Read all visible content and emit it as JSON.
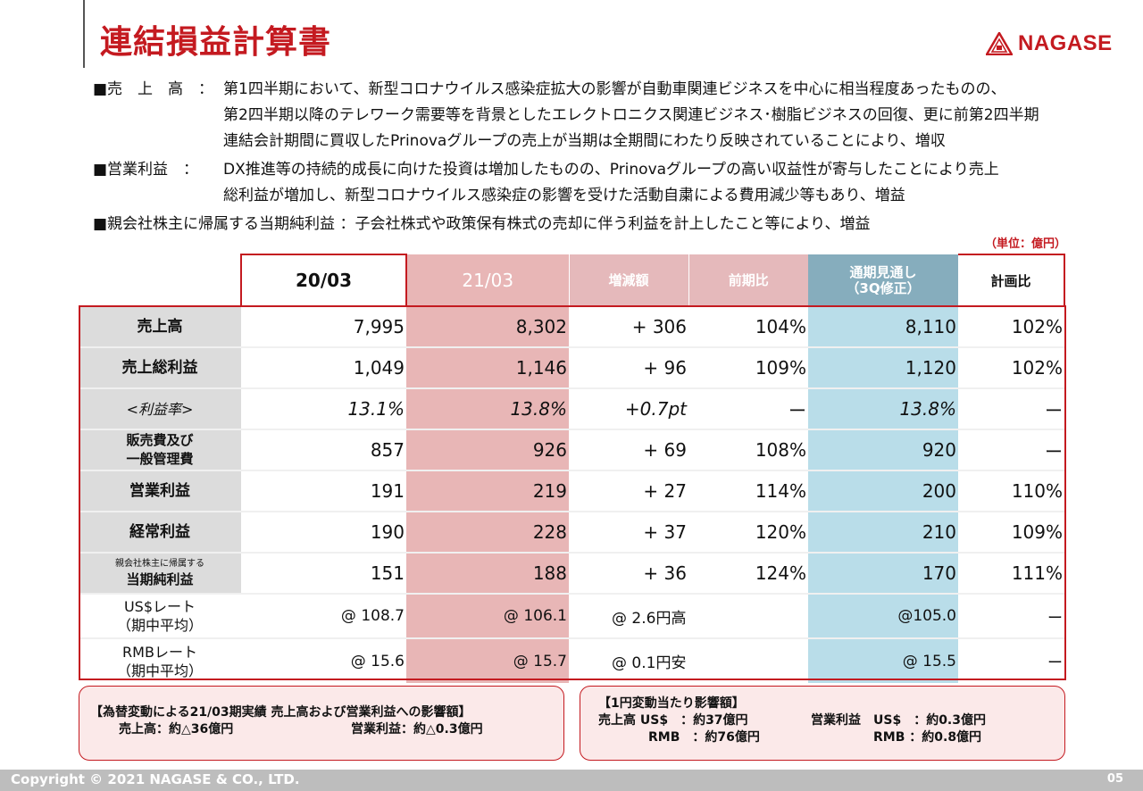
{
  "header": {
    "title": "連結損益計算書",
    "logo_text": "NAGASE"
  },
  "summary": {
    "sales": {
      "label": "■売　上　高　：",
      "lines": [
        "第1四半期において、新型コロナウイルス感染症拡大の影響が自動車関連ビジネスを中心に相当程度あったものの、",
        "第2四半期以降のテレワーク需要等を背景としたエレクトロニクス関連ビジネス･樹脂ビジネスの回復、更に前第2四半期",
        "連結会計期間に買収したPrinovaグループの売上が当期は全期間にわたり反映されていることにより、増収"
      ]
    },
    "op_income": {
      "label": "■営業利益　：",
      "lines": [
        "DX推進等の持続的成長に向けた投資は増加したものの、Prinovaグループの高い収益性が寄与したことにより売上",
        "総利益が増加し、新型コロナウイルス感染症の影響を受けた活動自粛による費用減少等もあり、増益"
      ]
    },
    "net_income": "■親会社株主に帰属する当期純利益 ：子会社株式や政策保有株式の売却に伴う利益を計上したこと等により、増益"
  },
  "unit": "（単位：億円）",
  "table": {
    "headers": {
      "y2003": "20/03",
      "y2103": "21/03",
      "diff": "増減額",
      "ratio": "前期比",
      "forecast_l1": "通期見通し",
      "forecast_l2": "（3Q修正）",
      "plan_ratio": "計画比"
    },
    "rows": [
      {
        "label": "売上高",
        "y2003": "7,995",
        "y2103": "8,302",
        "diff": "+ 306",
        "ratio": "104%",
        "forecast": "8,110",
        "plan": "102%"
      },
      {
        "label": "売上総利益",
        "y2003": "1,049",
        "y2103": "1,146",
        "diff": "+ 96",
        "ratio": "109%",
        "forecast": "1,120",
        "plan": "102%"
      },
      {
        "label": "<利益率>",
        "y2003": "13.1%",
        "y2103": "13.8%",
        "diff": "+0.7pt",
        "ratio": "ー",
        "forecast": "13.8%",
        "plan": "ー"
      },
      {
        "label_l1": "販売費及び",
        "label_l2": "一般管理費",
        "y2003": "857",
        "y2103": "926",
        "diff": "+ 69",
        "ratio": "108%",
        "forecast": "920",
        "plan": "ー"
      },
      {
        "label": "営業利益",
        "y2003": "191",
        "y2103": "219",
        "diff": "+ 27",
        "ratio": "114%",
        "forecast": "200",
        "plan": "110%"
      },
      {
        "label": "経常利益",
        "y2003": "190",
        "y2103": "228",
        "diff": "+ 37",
        "ratio": "120%",
        "forecast": "210",
        "plan": "109%"
      },
      {
        "label_l1": "親会社株主に帰属する",
        "label_l2": "当期純利益",
        "y2003": "151",
        "y2103": "188",
        "diff": "+ 36",
        "ratio": "124%",
        "forecast": "170",
        "plan": "111%"
      },
      {
        "label_l1": "US$レート",
        "label_l2": "（期中平均）",
        "y2003": "@ 108.7",
        "y2103": "@ 106.1",
        "diff": "@ 2.6円高",
        "forecast": "@105.0",
        "plan": "ー"
      },
      {
        "label_l1": "RMBレート",
        "label_l2": "（期中平均）",
        "y2003": "@ 15.6",
        "y2103": "@ 15.7",
        "diff": "@ 0.1円安",
        "forecast": "@ 15.5",
        "plan": "ー"
      }
    ]
  },
  "note_fx": {
    "title": "【為替変動による21/03期実績 売上高および営業利益への影響額】",
    "sales": "売上高：約△36億円",
    "op": "営業利益：約△0.3億円"
  },
  "note_sensitivity": {
    "title": "【1円変動当たり影響額】",
    "line1_a": "売上高 US$　：約37億円",
    "line1_b": "営業利益　US$　：約0.3億円",
    "line2_a": "RMB　：約76億円",
    "line2_b": "RMB ：約0.8億円"
  },
  "footer": {
    "copyright": "Copyright © 2021 NAGASE & CO., LTD.",
    "page": "05"
  },
  "colors": {
    "brand_red": "#c41a20",
    "col_2103": "#e8b6b6",
    "col_forecast": "#b9dde9",
    "label_bg": "#dcdcdc"
  }
}
